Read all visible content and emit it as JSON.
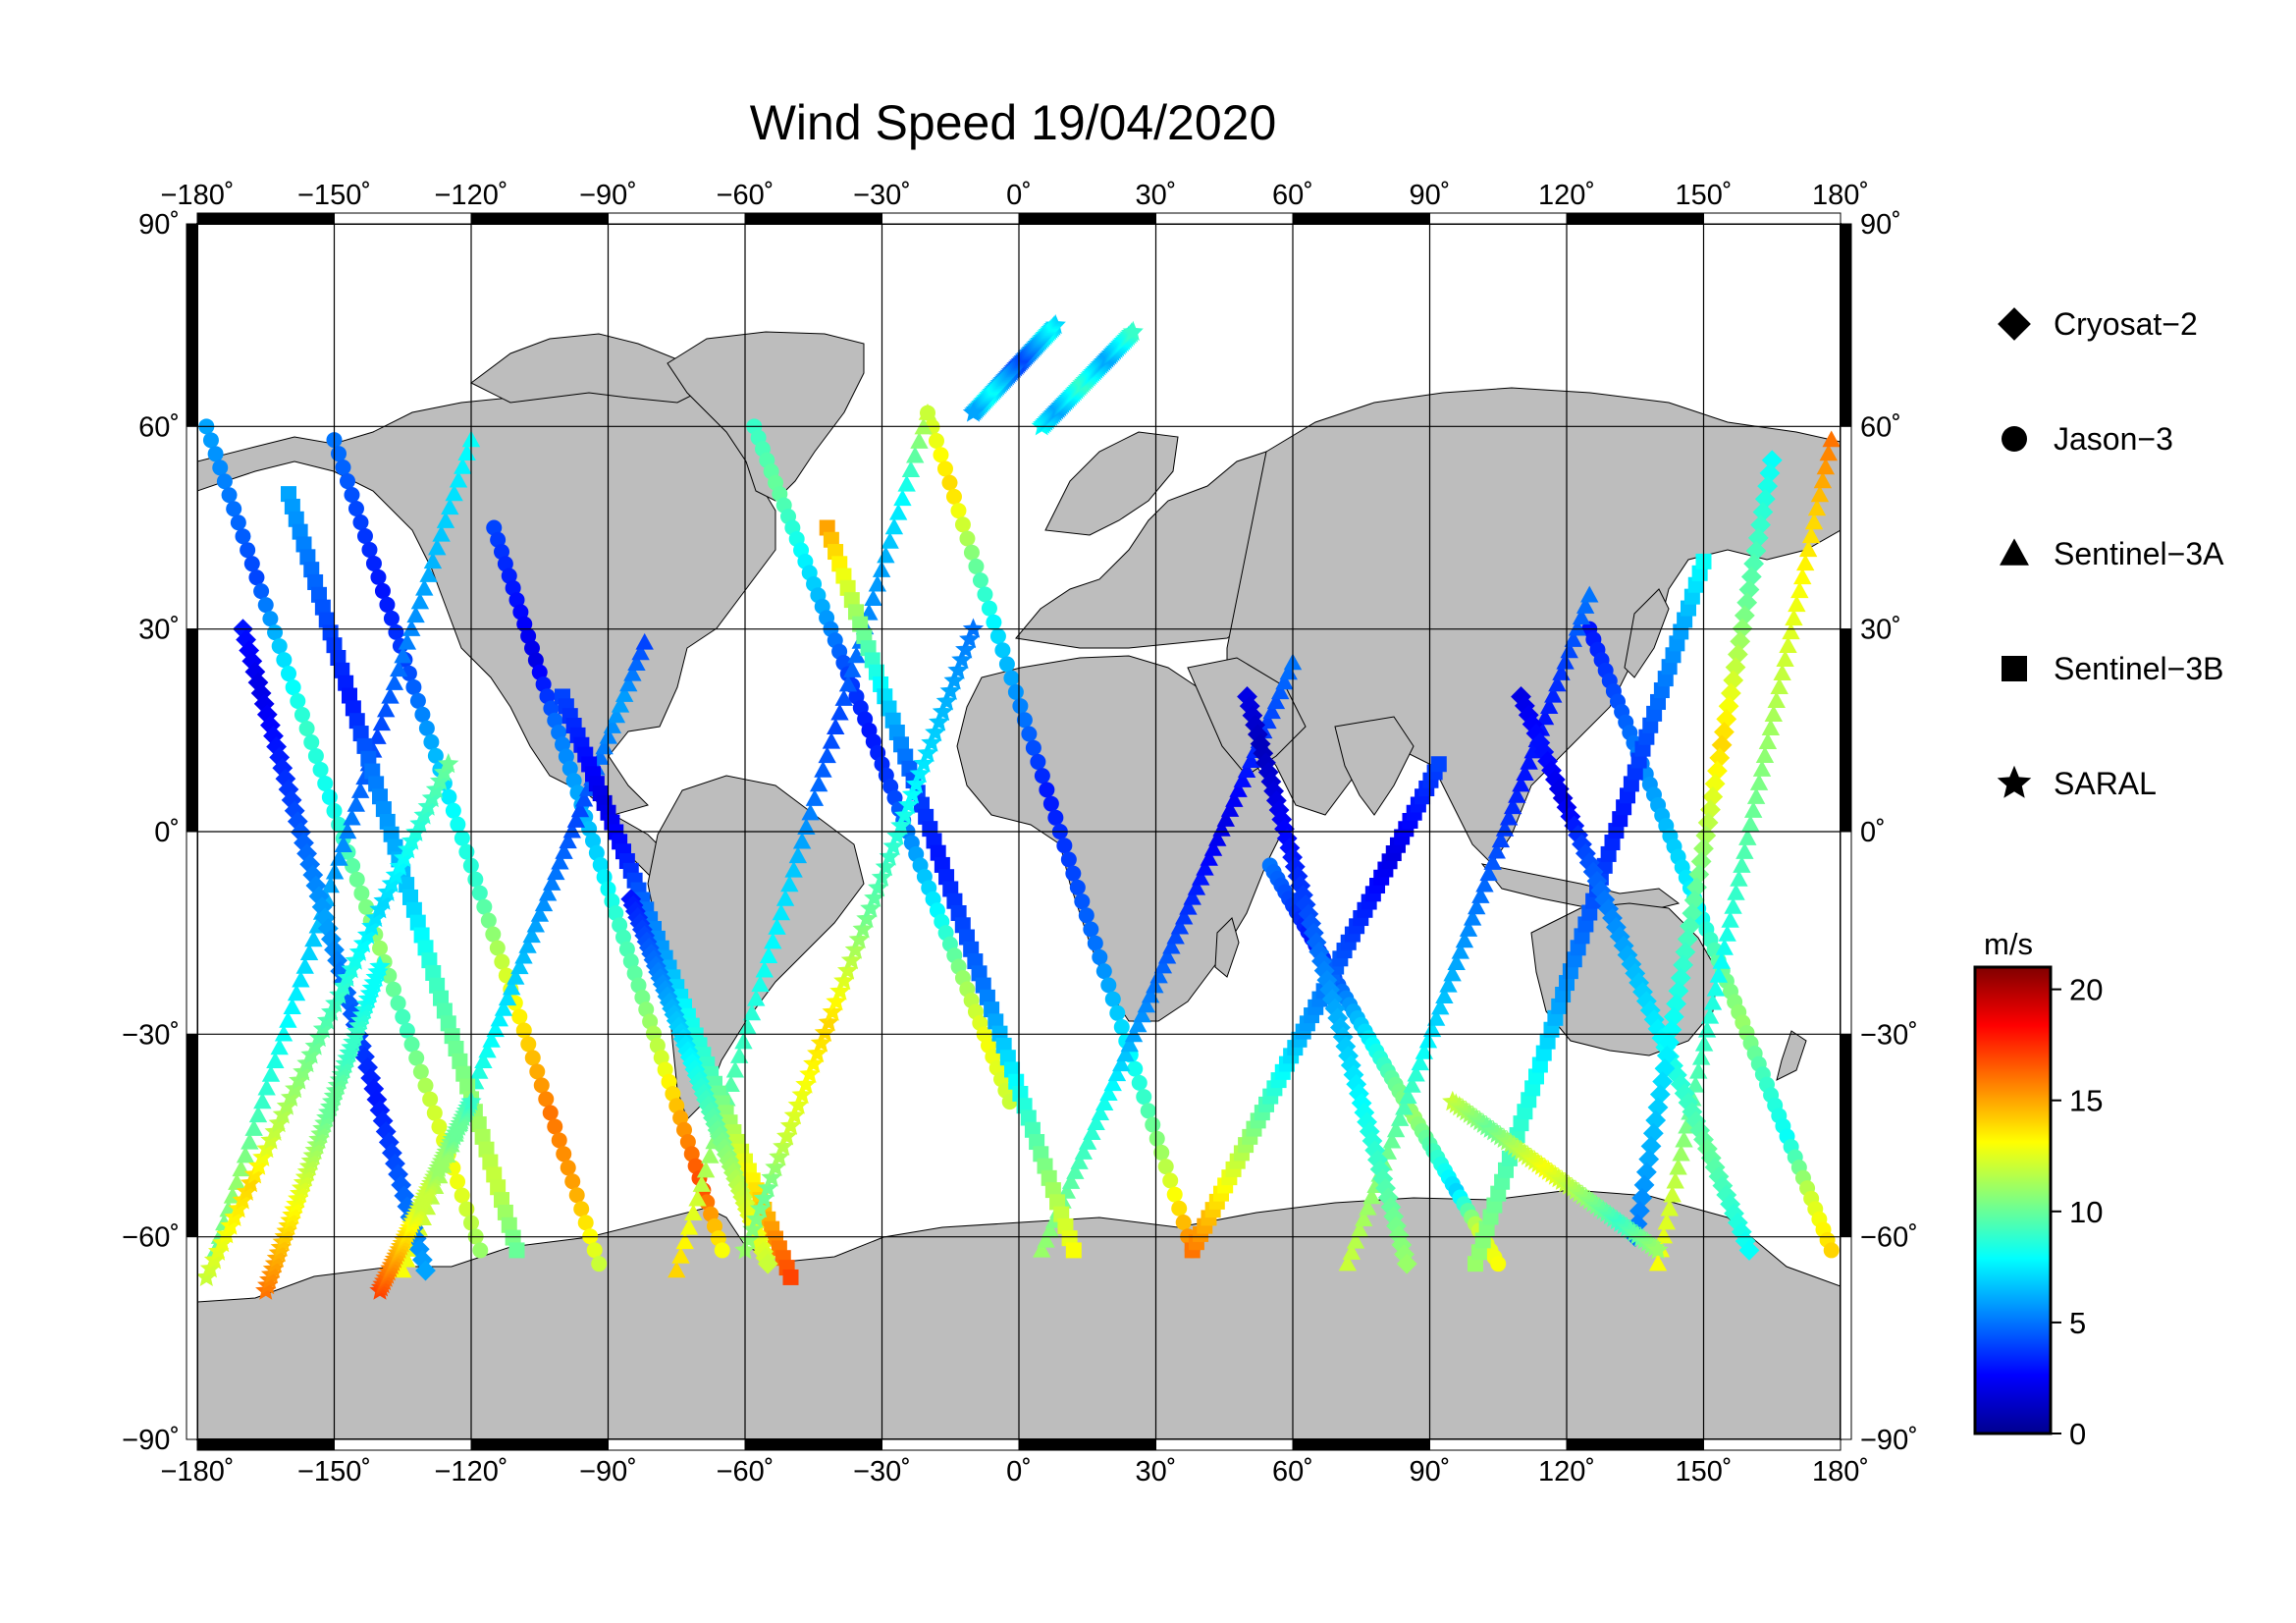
{
  "title": "Wind Speed 19/04/2020",
  "chart_data": {
    "type": "scatter",
    "title": "Wind Speed 19/04/2020",
    "xlim": [
      -180,
      180
    ],
    "ylim": [
      -90,
      90
    ],
    "x_ticks": [
      "−180˚",
      "−150˚",
      "−120˚",
      "−90˚",
      "−60˚",
      "−30˚",
      "0˚",
      "30˚",
      "60˚",
      "90˚",
      "120˚",
      "150˚",
      "180˚"
    ],
    "x_tick_values": [
      -180,
      -150,
      -120,
      -90,
      -60,
      -30,
      0,
      30,
      60,
      90,
      120,
      150,
      180
    ],
    "y_ticks": [
      "90˚",
      "60˚",
      "30˚",
      "0˚",
      "−30˚",
      "−60˚",
      "−90˚"
    ],
    "y_tick_values": [
      90,
      60,
      30,
      0,
      -30,
      -60,
      -90
    ],
    "grid": true,
    "land_color": "#bdbdbd",
    "ocean_color": "#ffffff",
    "legend_position": "right",
    "legend": [
      {
        "name": "Cryosat−2",
        "marker": "diamond"
      },
      {
        "name": "Jason−3",
        "marker": "circle"
      },
      {
        "name": "Sentinel−3A",
        "marker": "triangle"
      },
      {
        "name": "Sentinel−3B",
        "marker": "square"
      },
      {
        "name": "SARAL",
        "marker": "star"
      }
    ],
    "colorbar": {
      "unit": "m/s",
      "range": [
        0,
        21
      ],
      "ticks": [
        "20",
        "15",
        "10",
        "5",
        "0"
      ],
      "tick_values": [
        20,
        15,
        10,
        5,
        0
      ],
      "colormap": "jet",
      "colors": [
        "#00008f",
        "#0000ff",
        "#0080ff",
        "#00ffff",
        "#80ff80",
        "#ffff00",
        "#ff8000",
        "#ff0000",
        "#800000"
      ]
    },
    "tracks": [
      {
        "satellite": "Jason−3",
        "lon0": -178,
        "lat0": 60,
        "lon1": -118,
        "lat1": -62,
        "speeds": [
          6,
          5,
          4,
          7,
          9,
          8,
          10,
          11,
          9,
          12,
          13,
          11
        ]
      },
      {
        "satellite": "Jason−3",
        "lon0": -150,
        "lat0": 58,
        "lon1": -92,
        "lat1": -64,
        "speeds": [
          5,
          4,
          3,
          4,
          6,
          8,
          9,
          12,
          14,
          16,
          15,
          12
        ]
      },
      {
        "satellite": "Jason−3",
        "lon0": -115,
        "lat0": 45,
        "lon1": -65,
        "lat1": -62,
        "speeds": [
          4,
          3,
          2,
          5,
          6,
          7,
          9,
          10,
          12,
          15,
          17,
          13
        ]
      },
      {
        "satellite": "Jason−3",
        "lon0": -58,
        "lat0": 60,
        "lon1": -2,
        "lat1": -40,
        "speeds": [
          9,
          10,
          8,
          6,
          4,
          3,
          4,
          6,
          8,
          11,
          13,
          12
        ]
      },
      {
        "satellite": "Jason−3",
        "lon0": -20,
        "lat0": 62,
        "lon1": 38,
        "lat1": -62,
        "speeds": [
          12,
          14,
          10,
          7,
          5,
          3,
          4,
          5,
          7,
          9,
          12,
          16
        ]
      },
      {
        "satellite": "Jason−3",
        "lon0": 55,
        "lat0": -5,
        "lon1": 105,
        "lat1": -64,
        "speeds": [
          5,
          4,
          3,
          4,
          6,
          8,
          10,
          11,
          9,
          7,
          12,
          13
        ]
      },
      {
        "satellite": "Jason−3",
        "lon0": 125,
        "lat0": 30,
        "lon1": 178,
        "lat1": -62,
        "speeds": [
          3,
          4,
          5,
          6,
          7,
          8,
          10,
          11,
          9,
          8,
          12,
          14
        ]
      },
      {
        "satellite": "Sentinel−3A",
        "lon0": -176,
        "lat0": -62,
        "lon1": -120,
        "lat1": 58,
        "speeds": [
          10,
          11,
          9,
          8,
          7,
          6,
          5,
          4,
          5,
          6,
          7,
          8
        ]
      },
      {
        "satellite": "Sentinel−3A",
        "lon0": -135,
        "lat0": -65,
        "lon1": -82,
        "lat1": 28,
        "speeds": [
          13,
          12,
          11,
          9,
          8,
          7,
          6,
          5,
          4,
          5,
          6,
          4
        ]
      },
      {
        "satellite": "Sentinel−3A",
        "lon0": -75,
        "lat0": -65,
        "lon1": -20,
        "lat1": 62,
        "speeds": [
          14,
          12,
          10,
          9,
          8,
          7,
          5,
          4,
          5,
          6,
          8,
          12
        ]
      },
      {
        "satellite": "Sentinel−3A",
        "lon0": 5,
        "lat0": -62,
        "lon1": 60,
        "lat1": 25,
        "speeds": [
          11,
          10,
          9,
          8,
          6,
          5,
          4,
          3,
          2,
          3,
          4,
          5
        ]
      },
      {
        "satellite": "Sentinel−3A",
        "lon0": 72,
        "lat0": -64,
        "lon1": 125,
        "lat1": 35,
        "speeds": [
          12,
          11,
          10,
          9,
          7,
          6,
          5,
          4,
          3,
          3,
          4,
          5
        ]
      },
      {
        "satellite": "Sentinel−3A",
        "lon0": 140,
        "lat0": -64,
        "lon1": 178,
        "lat1": 58,
        "speeds": [
          13,
          12,
          10,
          9,
          8,
          9,
          10,
          11,
          12,
          13,
          14,
          16
        ]
      },
      {
        "satellite": "Sentinel−3B",
        "lon0": -160,
        "lat0": 50,
        "lon1": -110,
        "lat1": -62,
        "speeds": [
          6,
          5,
          4,
          3,
          5,
          6,
          7,
          9,
          10,
          11,
          12,
          10
        ]
      },
      {
        "satellite": "Sentinel−3B",
        "lon0": -100,
        "lat0": 20,
        "lon1": -50,
        "lat1": -66,
        "speeds": [
          4,
          3,
          2,
          3,
          5,
          6,
          8,
          9,
          11,
          13,
          15,
          17
        ]
      },
      {
        "satellite": "Sentinel−3B",
        "lon0": -42,
        "lat0": 45,
        "lon1": 12,
        "lat1": -62,
        "speeds": [
          15,
          12,
          9,
          6,
          4,
          3,
          4,
          5,
          7,
          9,
          11,
          13
        ]
      },
      {
        "satellite": "Sentinel−3B",
        "lon0": 38,
        "lat0": -62,
        "lon1": 92,
        "lat1": 10,
        "speeds": [
          16,
          14,
          12,
          10,
          8,
          6,
          5,
          4,
          3,
          2,
          3,
          4
        ]
      },
      {
        "satellite": "Sentinel−3B",
        "lon0": 100,
        "lat0": -64,
        "lon1": 150,
        "lat1": 40,
        "speeds": [
          11,
          10,
          9,
          8,
          6,
          5,
          4,
          3,
          4,
          5,
          6,
          8
        ]
      },
      {
        "satellite": "Cryosat−2",
        "lon0": -170,
        "lat0": 30,
        "lon1": -130,
        "lat1": -65,
        "speeds": [
          3,
          2,
          3,
          4,
          5,
          6,
          5,
          4,
          3,
          4,
          5,
          6
        ]
      },
      {
        "satellite": "Cryosat−2",
        "lon0": -85,
        "lat0": -10,
        "lon1": -55,
        "lat1": -64,
        "speeds": [
          3,
          4,
          5,
          6,
          7,
          8,
          9,
          10,
          11,
          12,
          13,
          12
        ]
      },
      {
        "satellite": "Cryosat−2",
        "lon0": 50,
        "lat0": 20,
        "lon1": 85,
        "lat1": -64,
        "speeds": [
          2,
          1,
          2,
          3,
          4,
          5,
          6,
          7,
          8,
          9,
          10,
          11
        ]
      },
      {
        "satellite": "Cryosat−2",
        "lon0": 110,
        "lat0": 20,
        "lon1": 160,
        "lat1": -62,
        "speeds": [
          2,
          3,
          2,
          4,
          5,
          6,
          7,
          8,
          9,
          10,
          9,
          8
        ]
      },
      {
        "satellite": "Cryosat−2",
        "lon0": 165,
        "lat0": 55,
        "lon1": 135,
        "lat1": -60,
        "speeds": [
          8,
          9,
          10,
          12,
          14,
          12,
          10,
          9,
          8,
          7,
          6,
          5
        ]
      },
      {
        "satellite": "SARAL",
        "lon0": -178,
        "lat0": -66,
        "lon1": -125,
        "lat1": 10,
        "speeds": [
          12,
          13,
          14,
          12,
          11,
          10,
          9,
          8,
          7,
          8,
          9,
          10
        ]
      },
      {
        "satellite": "SARAL",
        "lon0": -165,
        "lat0": -68,
        "lon1": -140,
        "lat1": -20,
        "speeds": [
          16,
          15,
          14,
          13,
          12,
          11,
          10,
          10,
          9,
          9,
          8,
          8
        ]
      },
      {
        "satellite": "SARAL",
        "lon0": -140,
        "lat0": -68,
        "lon1": -120,
        "lat1": -40,
        "speeds": [
          17,
          16,
          15,
          14,
          13,
          12,
          12,
          11,
          11,
          10,
          10,
          9
        ]
      },
      {
        "satellite": "SARAL",
        "lon0": -60,
        "lat0": -62,
        "lon1": -10,
        "lat1": 30,
        "speeds": [
          11,
          10,
          12,
          13,
          14,
          12,
          10,
          9,
          8,
          7,
          6,
          5
        ]
      },
      {
        "satellite": "SARAL",
        "lon0": 5,
        "lat0": 60,
        "lon1": 25,
        "lat1": 74,
        "speeds": [
          8,
          7,
          6,
          7,
          8,
          9,
          8,
          7,
          6,
          7,
          8,
          9
        ]
      },
      {
        "satellite": "SARAL",
        "lon0": 8,
        "lat0": 75,
        "lon1": -10,
        "lat1": 62,
        "speeds": [
          7,
          8,
          7,
          6,
          5,
          4,
          5,
          6,
          7,
          8,
          7,
          6
        ]
      },
      {
        "satellite": "SARAL",
        "lon0": 95,
        "lat0": -40,
        "lon1": 140,
        "lat1": -62,
        "speeds": [
          12,
          11,
          10,
          11,
          12,
          13,
          12,
          11,
          10,
          9,
          10,
          11
        ]
      }
    ]
  }
}
